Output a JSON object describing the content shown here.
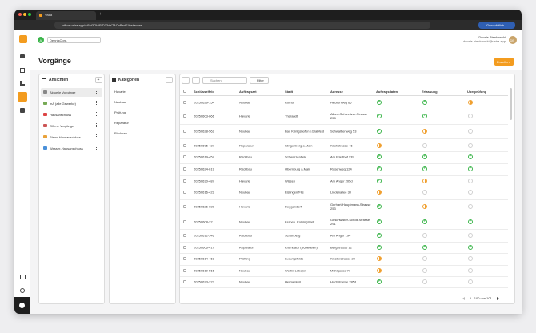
{
  "browser": {
    "tab_title": "Vaira",
    "url": "office.vaira.app/o/6xt3OHiPID73dYTACnBadE/instances",
    "profile": "Geschäftlich"
  },
  "user": {
    "name": "Dennis Bienkowski",
    "email": "dennis.bienkowski@vaira.app",
    "initials": "DB"
  },
  "org": {
    "initial": "A",
    "name": "DennisCorp."
  },
  "page": {
    "title": "Vorgänge",
    "create_button": "Erstellen"
  },
  "views": {
    "title": "Ansichten",
    "add": "+",
    "items": [
      "Aktuelle Vorgänge",
      "mA (alle Gewerke)",
      "Hausanschluss",
      "Offene Vorgänge",
      "Strom Hausanschluss",
      "Wasser-Hausanschluss"
    ]
  },
  "categories": {
    "title": "Kategorien",
    "items": [
      "Havarie",
      "Neubau",
      "Prüfung",
      "Reparatur",
      "Rückbau"
    ]
  },
  "toolbar": {
    "search_placeholder": "Suchen",
    "filter": "Filter"
  },
  "table": {
    "columns": [
      "Schlüsselfeld",
      "Auftragsart",
      "Stadt",
      "Adresse",
      "Auftragsdaten",
      "Erfassung",
      "Überprüfung"
    ],
    "rows": [
      {
        "cells": [
          "20250629-154",
          "Neubau",
          "Rötha",
          "Heckenweg 66"
        ],
        "status": [
          "done",
          "done",
          "pending"
        ]
      },
      {
        "cells": [
          "20250603-666",
          "Havarie",
          "Tharandt",
          "Albert-Schweitzer-Strasse 258"
        ],
        "status": [
          "done",
          "done",
          "none"
        ]
      },
      {
        "cells": [
          "20250628-562",
          "Neubau",
          "Bad Königshofen i.Grabfeld",
          "Schwalbenweg 53"
        ],
        "status": [
          "done",
          "pending",
          "none"
        ]
      },
      {
        "cells": [
          "20250605-437",
          "Reparatur",
          "Klingenberg a.Main",
          "Kirchstrasse 46"
        ],
        "status": [
          "pending",
          "none",
          "none"
        ]
      },
      {
        "cells": [
          "20250619-457",
          "Rückbau",
          "Schwarzenbek",
          "Am Friedhof 239"
        ],
        "status": [
          "done",
          "done",
          "done"
        ]
      },
      {
        "cells": [
          "20250624-619",
          "Rückbau",
          "Obernburg a.Main",
          "Rosenweg 124"
        ],
        "status": [
          "done",
          "done",
          "done"
        ]
      },
      {
        "cells": [
          "20250630-487",
          "Havarie",
          "Wissen",
          "Am Anger 205d"
        ],
        "status": [
          "done",
          "pending",
          "none"
        ]
      },
      {
        "cells": [
          "20250616-422",
          "Neubau",
          "Eislingen/Fils",
          "Lindenallee 30"
        ],
        "status": [
          "pending",
          "none",
          "none"
        ]
      },
      {
        "cells": [
          "20250626-680",
          "Havarie",
          "Deggendorf",
          "Gerhart-Hauptmann-Strasse 253"
        ],
        "status": [
          "done",
          "pending",
          "none"
        ]
      },
      {
        "cells": [
          "20250608-22",
          "Neubau",
          "Kerpen, Kolpingstadt",
          "Geschwister-Scholl-Strasse 291"
        ],
        "status": [
          "done",
          "done",
          "done"
        ]
      },
      {
        "cells": [
          "20250612-346",
          "Rückbau",
          "Schönberg",
          "Am Anger 194"
        ],
        "status": [
          "done",
          "none",
          "none"
        ]
      },
      {
        "cells": [
          "20250606-417",
          "Reparatur",
          "Krumbach (Schwaben)",
          "Bergstrasse 12"
        ],
        "status": [
          "done",
          "done",
          "done"
        ]
      },
      {
        "cells": [
          "20250614-468",
          "Prüfung",
          "Ludwigsfelde",
          "Klosterstrasse 24"
        ],
        "status": [
          "pending",
          "none",
          "none"
        ]
      },
      {
        "cells": [
          "20250610-561",
          "Neubau",
          "Wettin-Löbejün",
          "Mühlgasse 77"
        ],
        "status": [
          "pending",
          "none",
          "none"
        ]
      },
      {
        "cells": [
          "20250623-223",
          "Neubau",
          "Hermeskeil",
          "Hochstrasse 285d"
        ],
        "status": [
          "done",
          "none",
          "none"
        ]
      }
    ]
  },
  "pagination": {
    "range": "1 - 100 von 101"
  }
}
